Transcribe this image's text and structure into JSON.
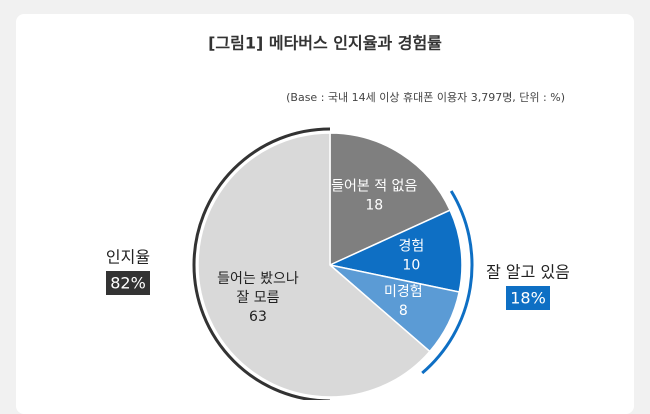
{
  "chart_data": {
    "type": "pie",
    "title": "[그림1] 메타버스 인지율과 경험률",
    "subtitle": "(Base : 국내 14세 이상 휴대폰 이용자 3,797명, 단위 : %)",
    "categories": [
      [
        "들어본 적 없음"
      ],
      [
        "경험"
      ],
      [
        "미경험"
      ],
      [
        "들어는 봤으나",
        "잘 모름"
      ]
    ],
    "values": [
      18,
      10,
      8,
      63
    ],
    "colors": [
      "#7f7f7f",
      "#0e6fc4",
      "#5b9bd5",
      "#d9d9d9"
    ],
    "annotations": [
      {
        "text": "인지율",
        "value": 82,
        "value_label": "82%"
      },
      {
        "text": "잘 알고 있음",
        "value": 18,
        "value_label": "18%"
      }
    ]
  }
}
